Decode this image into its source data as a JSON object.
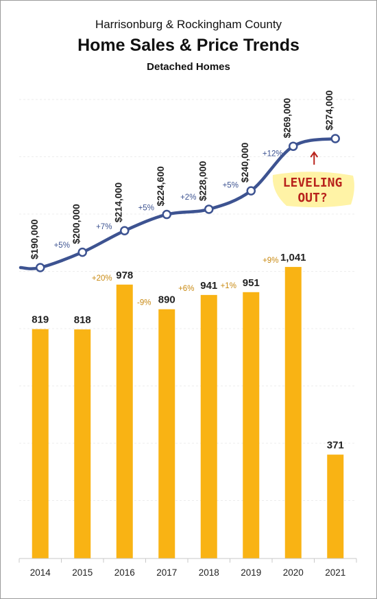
{
  "header": {
    "line1": "Harrisonburg & Rockingham County",
    "line2": "Home Sales & Price Trends",
    "line3": "Detached Homes"
  },
  "annotation": {
    "line1": "LEVELING",
    "line2": "OUT?"
  },
  "colors": {
    "bar": "#f9b314",
    "line": "#3d5391",
    "bar_change": "#c98a12",
    "annotation": "#b8221b",
    "highlight": "#fff3a6"
  },
  "chart_data": {
    "type": "bar+line",
    "categories": [
      "2014",
      "2015",
      "2016",
      "2017",
      "2018",
      "2019",
      "2020",
      "2021"
    ],
    "series": [
      {
        "type": "bar",
        "values": [
          819,
          818,
          978,
          890,
          941,
          951,
          1041,
          371
        ],
        "labels": [
          "819",
          "818",
          "978",
          "890",
          "941",
          "951",
          "1,041",
          "371"
        ],
        "change_labels": [
          "",
          "",
          "+20%",
          "-9%",
          "+6%",
          "+1%",
          "+9%",
          ""
        ]
      },
      {
        "type": "line",
        "values": [
          190000,
          200000,
          214000,
          224600,
          228000,
          240000,
          269000,
          274000
        ],
        "labels": [
          "$190,000",
          "$200,000",
          "$214,000",
          "$224,600",
          "$228,000",
          "$240,000",
          "$269,000",
          "$274,000"
        ],
        "change_labels": [
          "",
          "+5%",
          "+7%",
          "+5%",
          "+2%",
          "+5%",
          "+12%",
          ""
        ]
      }
    ],
    "grid": true,
    "legend": "none"
  }
}
